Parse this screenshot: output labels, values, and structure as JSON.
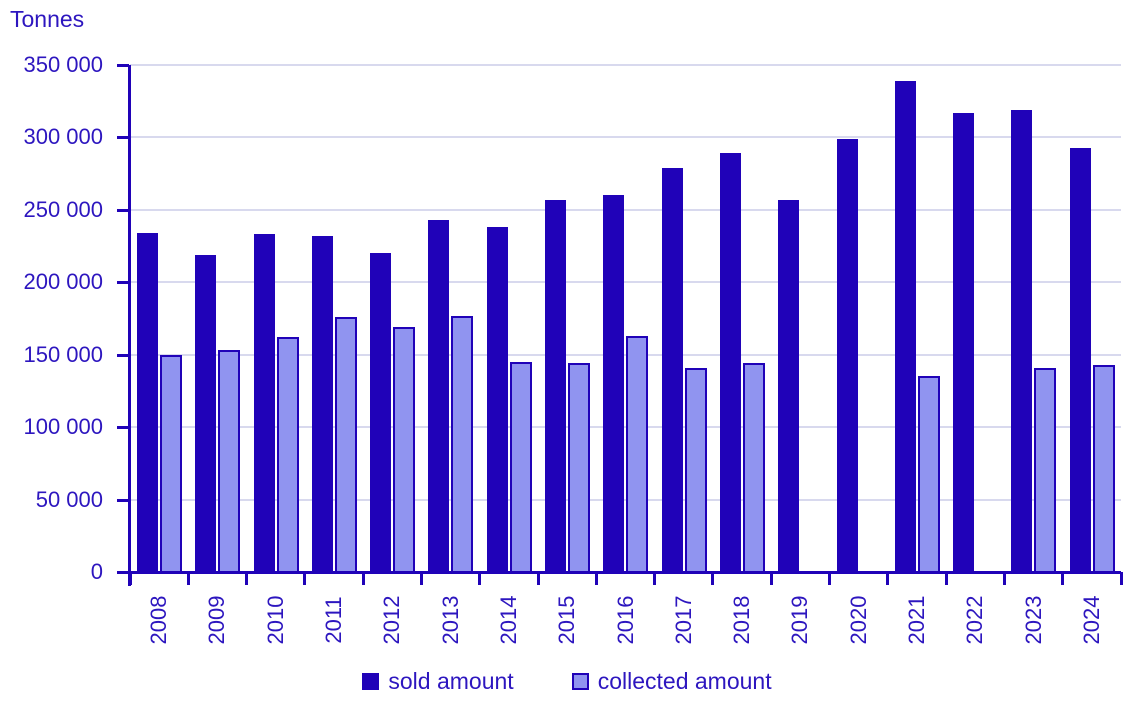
{
  "title": "Tonnes",
  "colors": {
    "text": "#2d16bf",
    "axis": "#2002b8",
    "grid": "#d8d9ee",
    "background": "#ffffff",
    "sold_fill": "#2002b8",
    "collected_fill": "#9094f0",
    "collected_border": "#2002b8"
  },
  "chart_data": {
    "type": "bar",
    "title": "Tonnes",
    "categories": [
      "2008",
      "2009",
      "2010",
      "2011",
      "2012",
      "2013",
      "2014",
      "2015",
      "2016",
      "2017",
      "2018",
      "2019",
      "2020",
      "2021",
      "2022",
      "2023",
      "2024"
    ],
    "series": [
      {
        "name": "sold amount",
        "color": "#2002b8",
        "values": [
          234000,
          219000,
          233000,
          232000,
          220000,
          243000,
          238000,
          257000,
          260000,
          279000,
          289000,
          257000,
          299000,
          339000,
          317000,
          319000,
          293000
        ]
      },
      {
        "name": "collected amount",
        "color": "#9094f0",
        "border_color": "#2002b8",
        "values": [
          150000,
          153000,
          162000,
          176000,
          169000,
          177000,
          145000,
          144000,
          163000,
          141000,
          144000,
          null,
          null,
          135000,
          null,
          141000,
          143000
        ]
      }
    ],
    "ylabel": "Tonnes",
    "ylim": [
      0,
      350000
    ],
    "y_tick_interval": 50000,
    "y_tick_labels": [
      "0",
      "50 000",
      "100 000",
      "150 000",
      "200 000",
      "250 000",
      "300 000",
      "350 000"
    ],
    "grid": true,
    "legend_position": "bottom"
  }
}
